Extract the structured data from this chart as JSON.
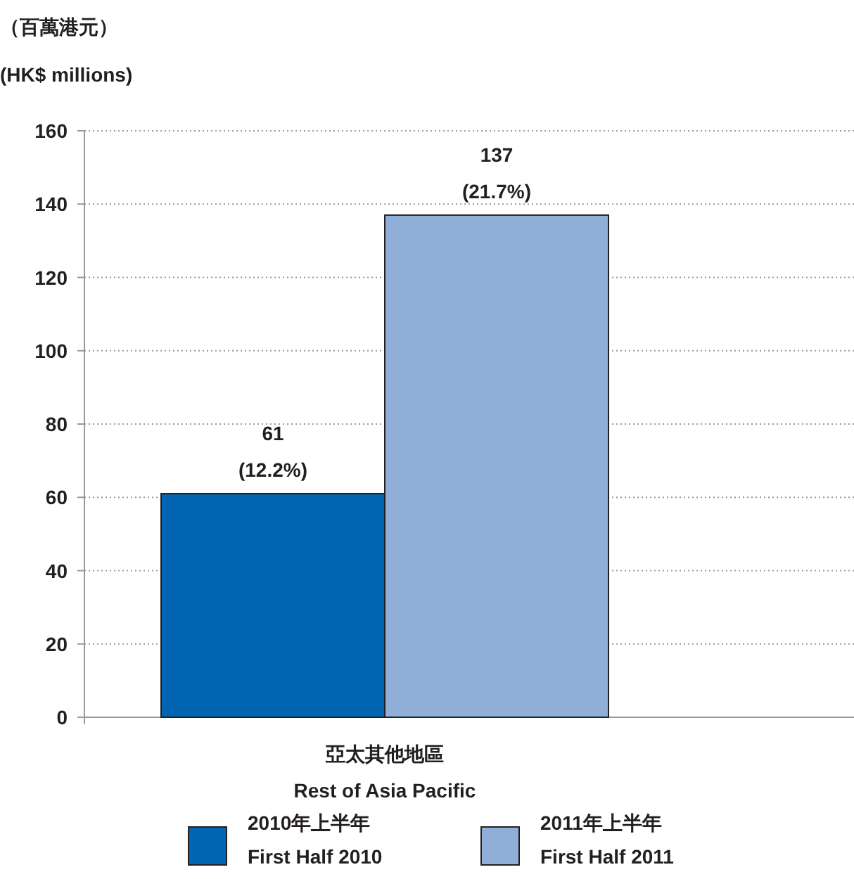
{
  "chart_data": {
    "type": "bar",
    "ylabel": "（百萬港元）\n(HK$ millions)",
    "categories": [
      "亞太其他地區\nRest of Asia Pacific"
    ],
    "series": [
      {
        "name": "2010年上半年\nFirst Half 2010",
        "color": "#0066b3",
        "values": [
          61
        ],
        "value_labels": [
          "61\n(12.2%)"
        ]
      },
      {
        "name": "2011年上半年\nFirst Half 2011",
        "color": "#8faed8",
        "values": [
          137
        ],
        "value_labels": [
          "137\n(21.7%)"
        ]
      }
    ],
    "ylim": [
      0,
      160
    ],
    "yticks": [
      0,
      20,
      40,
      60,
      80,
      100,
      120,
      140,
      160
    ],
    "grid": "y",
    "legend": "bottom"
  }
}
